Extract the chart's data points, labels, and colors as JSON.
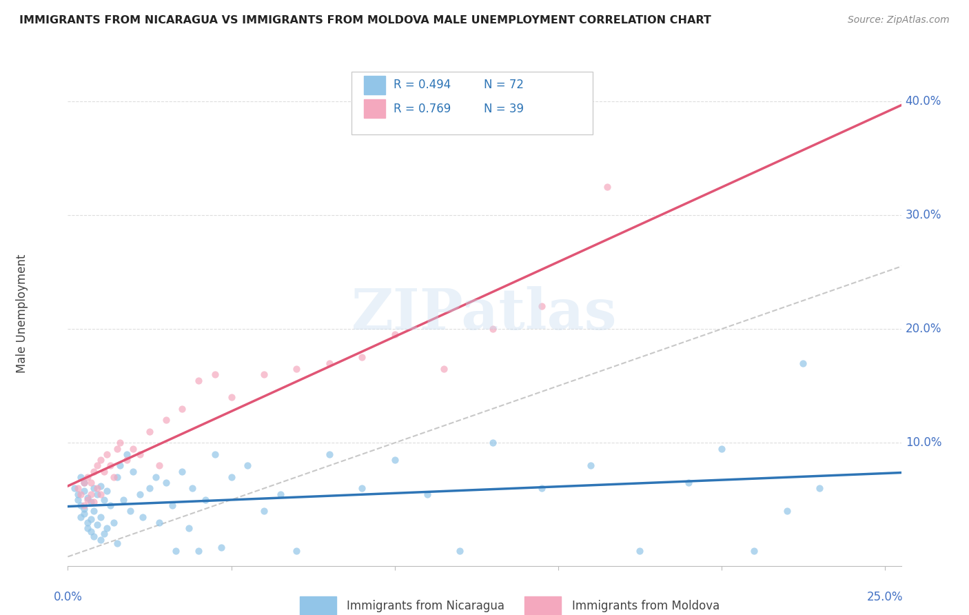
{
  "title": "IMMIGRANTS FROM NICARAGUA VS IMMIGRANTS FROM MOLDOVA MALE UNEMPLOYMENT CORRELATION CHART",
  "source": "Source: ZipAtlas.com",
  "ylabel": "Male Unemployment",
  "color_nicaragua": "#92C5E8",
  "color_moldova": "#F4A8BE",
  "color_line_nicaragua": "#2E75B6",
  "color_line_moldova": "#E05575",
  "color_diagonal": "#C8C8C8",
  "color_grid": "#DDDDDD",
  "color_tick_label": "#4472C4",
  "watermark": "ZIPatlas",
  "xlim": [
    0.0,
    0.255
  ],
  "ylim": [
    -0.008,
    0.435
  ],
  "yticks": [
    0.1,
    0.2,
    0.3,
    0.4
  ],
  "ytick_labels": [
    "10.0%",
    "20.0%",
    "30.0%",
    "40.0%"
  ],
  "xtick_labels": [
    "0.0%",
    "25.0%"
  ],
  "nicaragua_x": [
    0.002,
    0.003,
    0.003,
    0.004,
    0.004,
    0.004,
    0.005,
    0.005,
    0.005,
    0.005,
    0.006,
    0.006,
    0.006,
    0.007,
    0.007,
    0.007,
    0.008,
    0.008,
    0.008,
    0.009,
    0.009,
    0.01,
    0.01,
    0.01,
    0.011,
    0.011,
    0.012,
    0.012,
    0.013,
    0.014,
    0.015,
    0.015,
    0.016,
    0.017,
    0.018,
    0.019,
    0.02,
    0.022,
    0.023,
    0.025,
    0.027,
    0.028,
    0.03,
    0.032,
    0.033,
    0.035,
    0.037,
    0.038,
    0.04,
    0.042,
    0.045,
    0.047,
    0.05,
    0.055,
    0.06,
    0.065,
    0.07,
    0.08,
    0.09,
    0.1,
    0.11,
    0.12,
    0.13,
    0.145,
    0.16,
    0.175,
    0.19,
    0.2,
    0.21,
    0.22,
    0.225,
    0.23
  ],
  "nicaragua_y": [
    0.06,
    0.055,
    0.05,
    0.07,
    0.045,
    0.035,
    0.065,
    0.058,
    0.042,
    0.038,
    0.052,
    0.03,
    0.025,
    0.048,
    0.033,
    0.022,
    0.06,
    0.04,
    0.018,
    0.055,
    0.028,
    0.062,
    0.035,
    0.015,
    0.05,
    0.02,
    0.058,
    0.025,
    0.045,
    0.03,
    0.07,
    0.012,
    0.08,
    0.05,
    0.09,
    0.04,
    0.075,
    0.055,
    0.035,
    0.06,
    0.07,
    0.03,
    0.065,
    0.045,
    0.005,
    0.075,
    0.025,
    0.06,
    0.005,
    0.05,
    0.09,
    0.008,
    0.07,
    0.08,
    0.04,
    0.055,
    0.005,
    0.09,
    0.06,
    0.085,
    0.055,
    0.005,
    0.1,
    0.06,
    0.08,
    0.005,
    0.065,
    0.095,
    0.005,
    0.04,
    0.17,
    0.06
  ],
  "moldova_x": [
    0.003,
    0.004,
    0.005,
    0.005,
    0.006,
    0.006,
    0.007,
    0.007,
    0.008,
    0.008,
    0.009,
    0.009,
    0.01,
    0.01,
    0.011,
    0.012,
    0.013,
    0.014,
    0.015,
    0.016,
    0.018,
    0.02,
    0.022,
    0.025,
    0.028,
    0.03,
    0.035,
    0.04,
    0.045,
    0.05,
    0.06,
    0.07,
    0.08,
    0.09,
    0.1,
    0.115,
    0.13,
    0.145,
    0.165
  ],
  "moldova_y": [
    0.06,
    0.055,
    0.065,
    0.045,
    0.07,
    0.05,
    0.065,
    0.055,
    0.075,
    0.048,
    0.08,
    0.06,
    0.085,
    0.055,
    0.075,
    0.09,
    0.08,
    0.07,
    0.095,
    0.1,
    0.085,
    0.095,
    0.09,
    0.11,
    0.08,
    0.12,
    0.13,
    0.155,
    0.16,
    0.14,
    0.16,
    0.165,
    0.17,
    0.175,
    0.195,
    0.165,
    0.2,
    0.22,
    0.325
  ],
  "legend_r1": "R = 0.494",
  "legend_n1": "N = 72",
  "legend_r2": "R = 0.769",
  "legend_n2": "N = 39"
}
